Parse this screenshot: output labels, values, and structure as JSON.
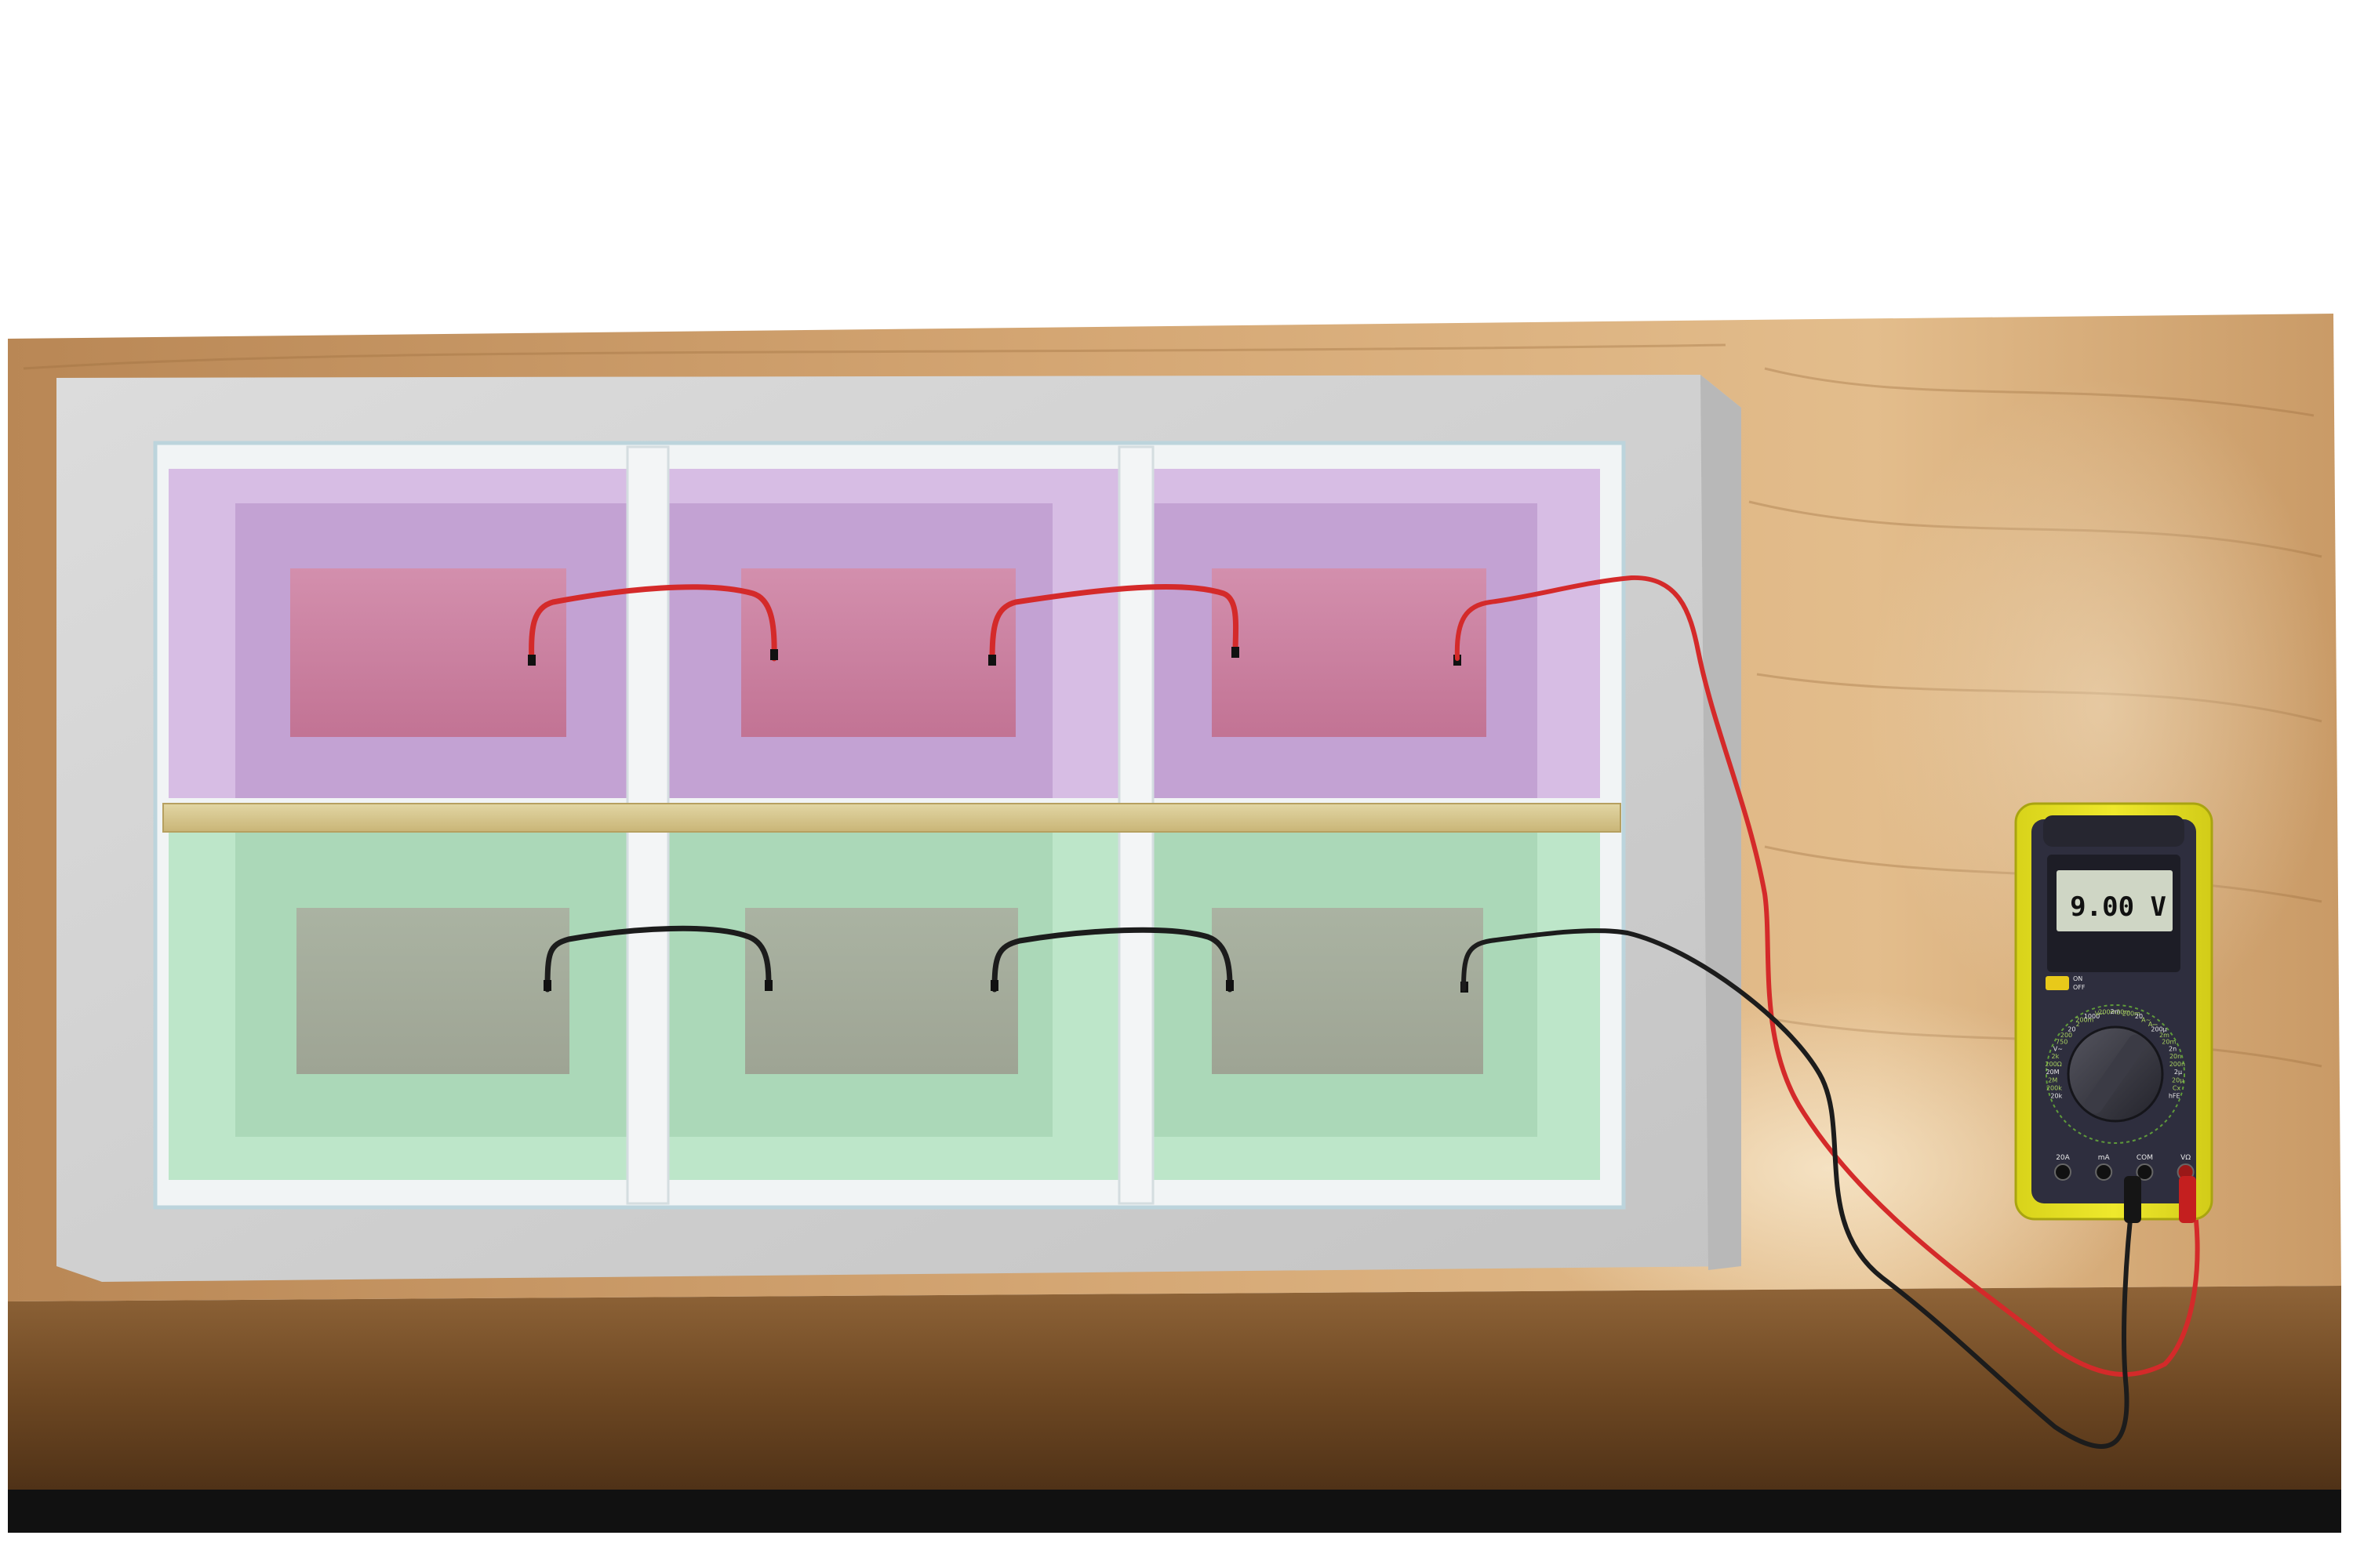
{
  "multimeter": {
    "reading": "9.00 V",
    "switch_on": "ON",
    "switch_off": "OFF",
    "scale_labels": [
      "20k",
      "200k",
      "2M",
      "20M",
      "200Ω",
      "2k",
      "V~",
      "750",
      "200",
      "20",
      "2",
      "200m",
      "1000",
      "V⎓",
      "200m",
      "2m",
      "20m",
      "200m",
      "20",
      "A~",
      "A⎓",
      "200μ",
      "2m",
      "20m",
      "2n",
      "20n",
      "200n",
      "2μ",
      "20μ",
      "Cx",
      "hFE"
    ],
    "jack_labels": [
      "20A",
      "mA",
      "COM",
      "VΩ"
    ]
  },
  "colors": {
    "wood": "#c89a63",
    "frame": "#d2d2d2",
    "upper_solution": "#c4a3d3",
    "lower_solution": "#b6e0c1",
    "upper_plate": "#cc7f9e",
    "lower_plate": "#a6ad9c",
    "red_wire": "#d42a2a",
    "black_wire": "#1c1c1c",
    "meter_body": "#e6e020",
    "meter_face": "#2e2e3e",
    "lcd": "#cfd6c5"
  }
}
